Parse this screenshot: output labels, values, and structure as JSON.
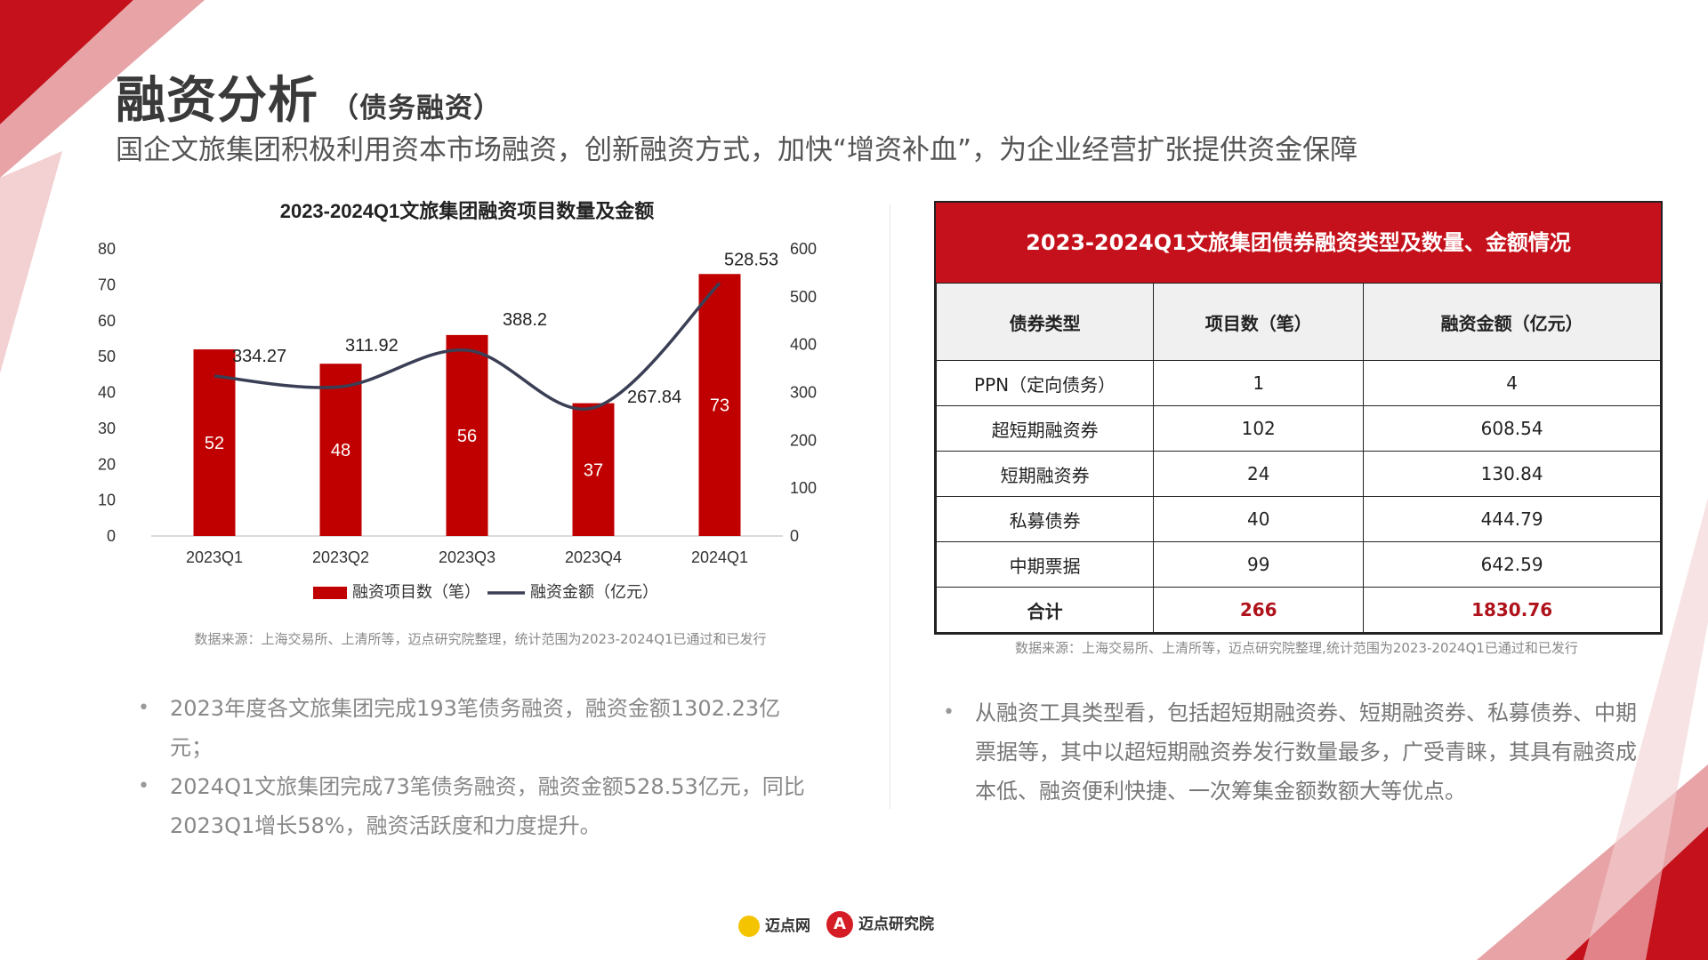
{
  "page": {
    "title": "融资分析",
    "title_sub": "（债务融资）",
    "headline": "国企文旅集团积极利用资本市场融资，创新融资方式，加快“增资补血”，为企业经营扩张提供资金保障"
  },
  "colors": {
    "accent_red": "#c5111b",
    "bar_red": "#c00000",
    "line": "#3b3f55"
  },
  "chart_data": {
    "type": "bar",
    "title": "2023-2024Q1文旅集团融资项目数量及金额",
    "categories": [
      "2023Q1",
      "2023Q2",
      "2023Q3",
      "2023Q4",
      "2024Q1"
    ],
    "series": [
      {
        "name": "融资项目数（笔）",
        "type": "bar",
        "axis": "left",
        "values": [
          52,
          48,
          56,
          37,
          73
        ]
      },
      {
        "name": "融资金额（亿元）",
        "type": "line",
        "axis": "right",
        "values": [
          334.27,
          311.92,
          388.2,
          267.84,
          528.53
        ]
      }
    ],
    "ylim_left": [
      0,
      80
    ],
    "yticks_left": [
      "0",
      "10",
      "20",
      "30",
      "40",
      "50",
      "60",
      "70",
      "80"
    ],
    "ylim_right": [
      0,
      600
    ],
    "yticks_right": [
      "0",
      "100",
      "200",
      "300",
      "400",
      "500",
      "600"
    ],
    "legend_position": "bottom",
    "source": "数据来源：上海交易所、上清所等，迈点研究院整理，统计范围为2023-2024Q1已通过和已发行"
  },
  "table": {
    "title": "2023-2024Q1文旅集团债券融资类型及数量、金额情况",
    "headers": [
      "债券类型",
      "项目数（笔）",
      "融资金额（亿元）"
    ],
    "rows": [
      [
        "PPN（定向债务）",
        "1",
        "4"
      ],
      [
        "超短期融资券",
        "102",
        "608.54"
      ],
      [
        "短期融资券",
        "24",
        "130.84"
      ],
      [
        "私募债券",
        "40",
        "444.79"
      ],
      [
        "中期票据",
        "99",
        "642.59"
      ]
    ],
    "total": [
      "合计",
      "266",
      "1830.76"
    ],
    "source": "数据来源：上海交易所、上清所等，迈点研究院整理,统计范围为2023-2024Q1已通过和已发行"
  },
  "bullets_left": [
    "2023年度各文旅集团完成193笔债务融资，融资金额1302.23亿元；",
    "2024Q1文旅集团完成73笔债务融资，融资金额528.53亿元，同比2023Q1增长58%，融资活跃度和力度提升。"
  ],
  "bullets_right": [
    "从融资工具类型看，包括超短期融资券、短期融资券、私募债券、中期票据等，其中以超短期融资券发行数量最多，广受青睐，其具有融资成本低、融资便利快捷、一次筹集金额数额大等优点。"
  ],
  "footer": {
    "logo1_text": "迈点网",
    "logo2_text": "迈点研究院"
  }
}
